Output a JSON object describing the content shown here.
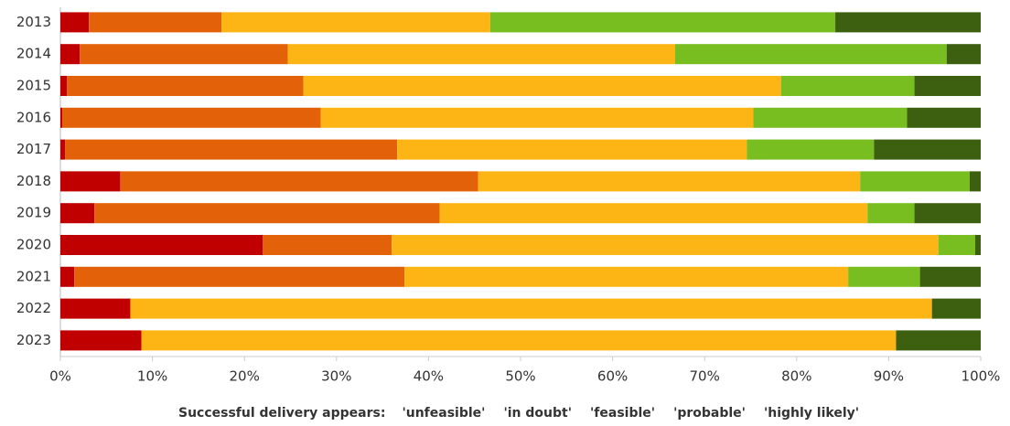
{
  "chart_data": {
    "type": "stacked-bar-horizontal",
    "categories": [
      "2013",
      "2014",
      "2015",
      "2016",
      "2017",
      "2018",
      "2019",
      "2020",
      "2021",
      "2022",
      "2023"
    ],
    "legend_title": "Successful delivery appears:",
    "series": [
      {
        "name": "'unfeasible'",
        "color": "#c00000",
        "values": [
          3.1,
          2.1,
          0.7,
          0.2,
          0.5,
          6.5,
          3.7,
          22.0,
          1.5,
          7.6,
          8.8
        ]
      },
      {
        "name": "'in doubt'",
        "color": "#e36209",
        "values": [
          14.4,
          22.6,
          25.7,
          28.1,
          36.1,
          38.9,
          37.5,
          14.0,
          35.9,
          0,
          0
        ]
      },
      {
        "name": "'feasible'",
        "color": "#fdb515",
        "values": [
          29.2,
          42.1,
          51.9,
          47.0,
          38.0,
          41.5,
          46.5,
          59.4,
          48.2,
          87.1,
          82.0
        ]
      },
      {
        "name": "'probable'",
        "color": "#78be20",
        "values": [
          37.5,
          29.5,
          14.5,
          16.7,
          13.8,
          11.9,
          5.1,
          4.0,
          7.8,
          0,
          0
        ]
      },
      {
        "name": "'highly likely'",
        "color": "#3d5f10",
        "values": [
          15.8,
          3.7,
          7.2,
          8.0,
          11.6,
          1.2,
          7.2,
          0.6,
          6.6,
          5.3,
          9.2
        ]
      }
    ],
    "xlim": [
      0,
      100
    ],
    "xticks": [
      {
        "value": 0,
        "label": "0%"
      },
      {
        "value": 10,
        "label": "10%"
      },
      {
        "value": 20,
        "label": "20%"
      },
      {
        "value": 30,
        "label": "30%"
      },
      {
        "value": 40,
        "label": "40%"
      },
      {
        "value": 50,
        "label": "50%"
      },
      {
        "value": 60,
        "label": "60%"
      },
      {
        "value": 70,
        "label": "70%"
      },
      {
        "value": 80,
        "label": "80%"
      },
      {
        "value": 90,
        "label": "90%"
      },
      {
        "value": 100,
        "label": "100%"
      }
    ]
  }
}
